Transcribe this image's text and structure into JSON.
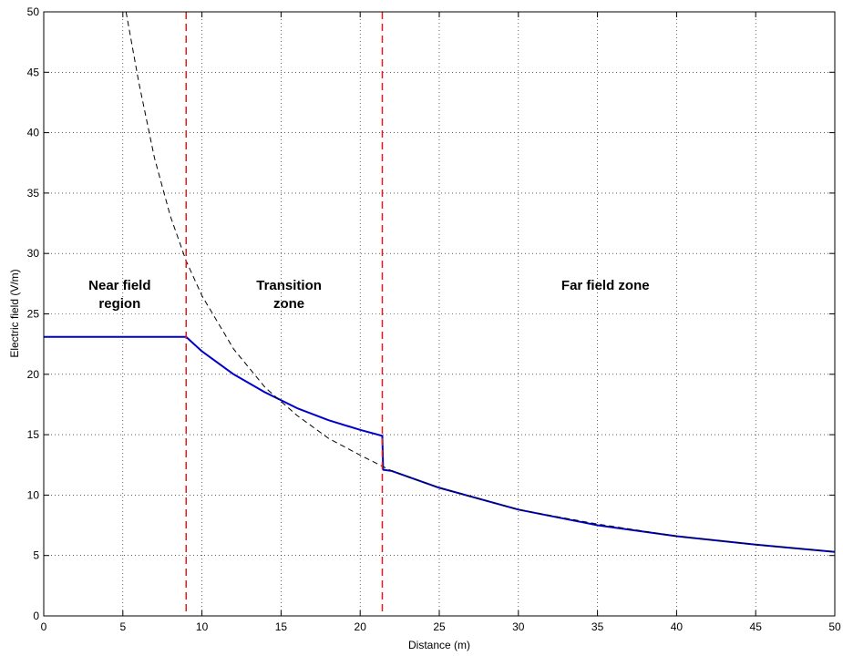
{
  "chart_data": {
    "type": "line",
    "title": "",
    "xlabel": "Distance (m)",
    "ylabel": "Electric field (V/m)",
    "xlim": [
      0,
      50
    ],
    "ylim": [
      0,
      50
    ],
    "xticks": [
      0,
      5,
      10,
      15,
      20,
      25,
      30,
      35,
      40,
      45,
      50
    ],
    "yticks": [
      0,
      5,
      10,
      15,
      20,
      25,
      30,
      35,
      40,
      45,
      50
    ],
    "grid": true,
    "series": [
      {
        "style": "solid",
        "color": "#0000cc",
        "x": [
          0,
          9,
          10,
          12,
          14,
          16,
          18,
          20,
          21.4,
          21.45,
          22,
          25,
          30,
          35,
          40,
          45,
          50
        ],
        "y": [
          23.1,
          23.1,
          21.9,
          20.0,
          18.5,
          17.2,
          16.2,
          15.4,
          14.9,
          12.1,
          12.0,
          10.6,
          8.8,
          7.5,
          6.6,
          5.9,
          5.3
        ]
      },
      {
        "style": "dashed",
        "color": "#000000",
        "x": [
          5.2,
          6,
          7,
          8,
          9,
          10,
          12,
          14,
          16,
          18,
          20,
          22,
          25,
          30,
          35,
          40,
          45,
          50
        ],
        "y": [
          50,
          44.2,
          37.9,
          33.1,
          29.4,
          26.5,
          22.1,
          18.9,
          16.6,
          14.7,
          13.3,
          12.0,
          10.6,
          8.8,
          7.6,
          6.6,
          5.9,
          5.3
        ]
      }
    ],
    "vlines": [
      {
        "x": 9,
        "color": "#e41a1c",
        "style": "dashed"
      },
      {
        "x": 21.4,
        "color": "#e41a1c",
        "style": "dashed"
      }
    ],
    "annotations": [
      {
        "lines": [
          "Near field",
          "region"
        ],
        "x": 4.8,
        "y": 27
      },
      {
        "lines": [
          "Transition",
          "zone"
        ],
        "x": 15.5,
        "y": 27
      },
      {
        "lines": [
          "Far field zone"
        ],
        "x": 35.5,
        "y": 27
      }
    ]
  }
}
